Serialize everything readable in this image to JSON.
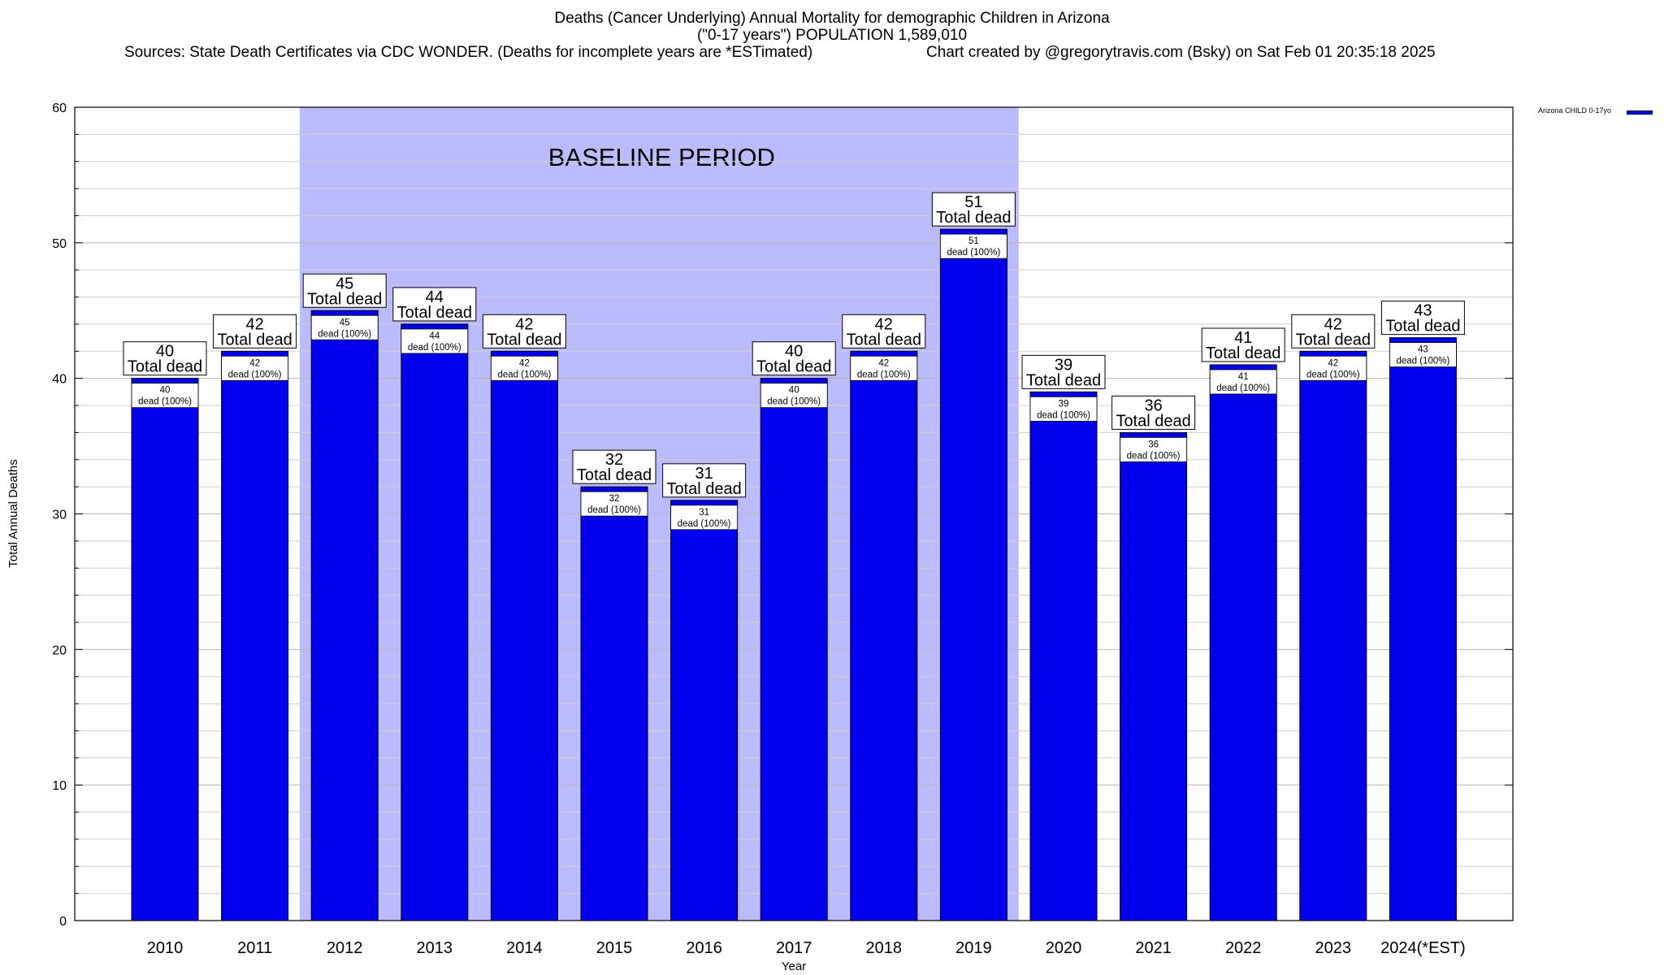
{
  "chart_data": {
    "type": "bar",
    "title_lines": [
      "Deaths (Cancer Underlying) Annual Mortality for demographic Children in Arizona",
      "(\"0-17 years\") POPULATION 1,589,010"
    ],
    "source_left": "Sources: State Death Certificates via CDC WONDER. (Deaths for incomplete years are *ESTimated)",
    "source_right": "Chart created by @gregorytravis.com (Bsky) on Sat Feb 01 20:35:18 2025",
    "xlabel": "Year",
    "ylabel": "Total Annual Deaths",
    "ylim": [
      0,
      60
    ],
    "yticks": [
      0,
      10,
      20,
      30,
      40,
      50,
      60
    ],
    "categories": [
      "2010",
      "2011",
      "2012",
      "2013",
      "2014",
      "2015",
      "2016",
      "2017",
      "2018",
      "2019",
      "2020",
      "2021",
      "2022",
      "2023",
      "2024(*EST)"
    ],
    "series": [
      {
        "name": "Arizona CHILD 0-17yo",
        "color": "#0000ee",
        "values": [
          40,
          42,
          45,
          44,
          42,
          32,
          31,
          40,
          42,
          51,
          39,
          36,
          41,
          42,
          43
        ]
      }
    ],
    "total_label_text": "Total dead",
    "inner_label_text": "dead (100%)",
    "baseline": {
      "label": "BASELINE PERIOD",
      "start_category": "2012",
      "end_category": "2019",
      "color": "#bbbbff"
    },
    "legend": {
      "label": "Arizona CHILD 0-17yo",
      "position": "top-right"
    },
    "grid": true
  }
}
